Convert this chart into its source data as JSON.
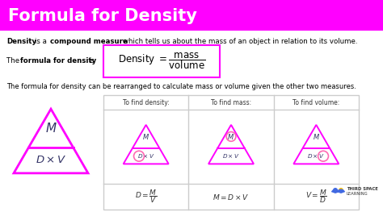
{
  "title": "Formula for Density",
  "title_bg": "#ff00ff",
  "title_color": "#ffffff",
  "bg_color": "#ffffff",
  "formula_box_color": "#ff00ff",
  "table_line_color": "#cccccc",
  "dark_text": "#333366",
  "rearrange_text": "The formula for density can be rearranged to calculate mass or volume given the other two measures.",
  "col_headers": [
    "To find density:",
    "To find mass:",
    "To find volume:"
  ],
  "circle_positions": [
    "D",
    "M",
    "V"
  ]
}
